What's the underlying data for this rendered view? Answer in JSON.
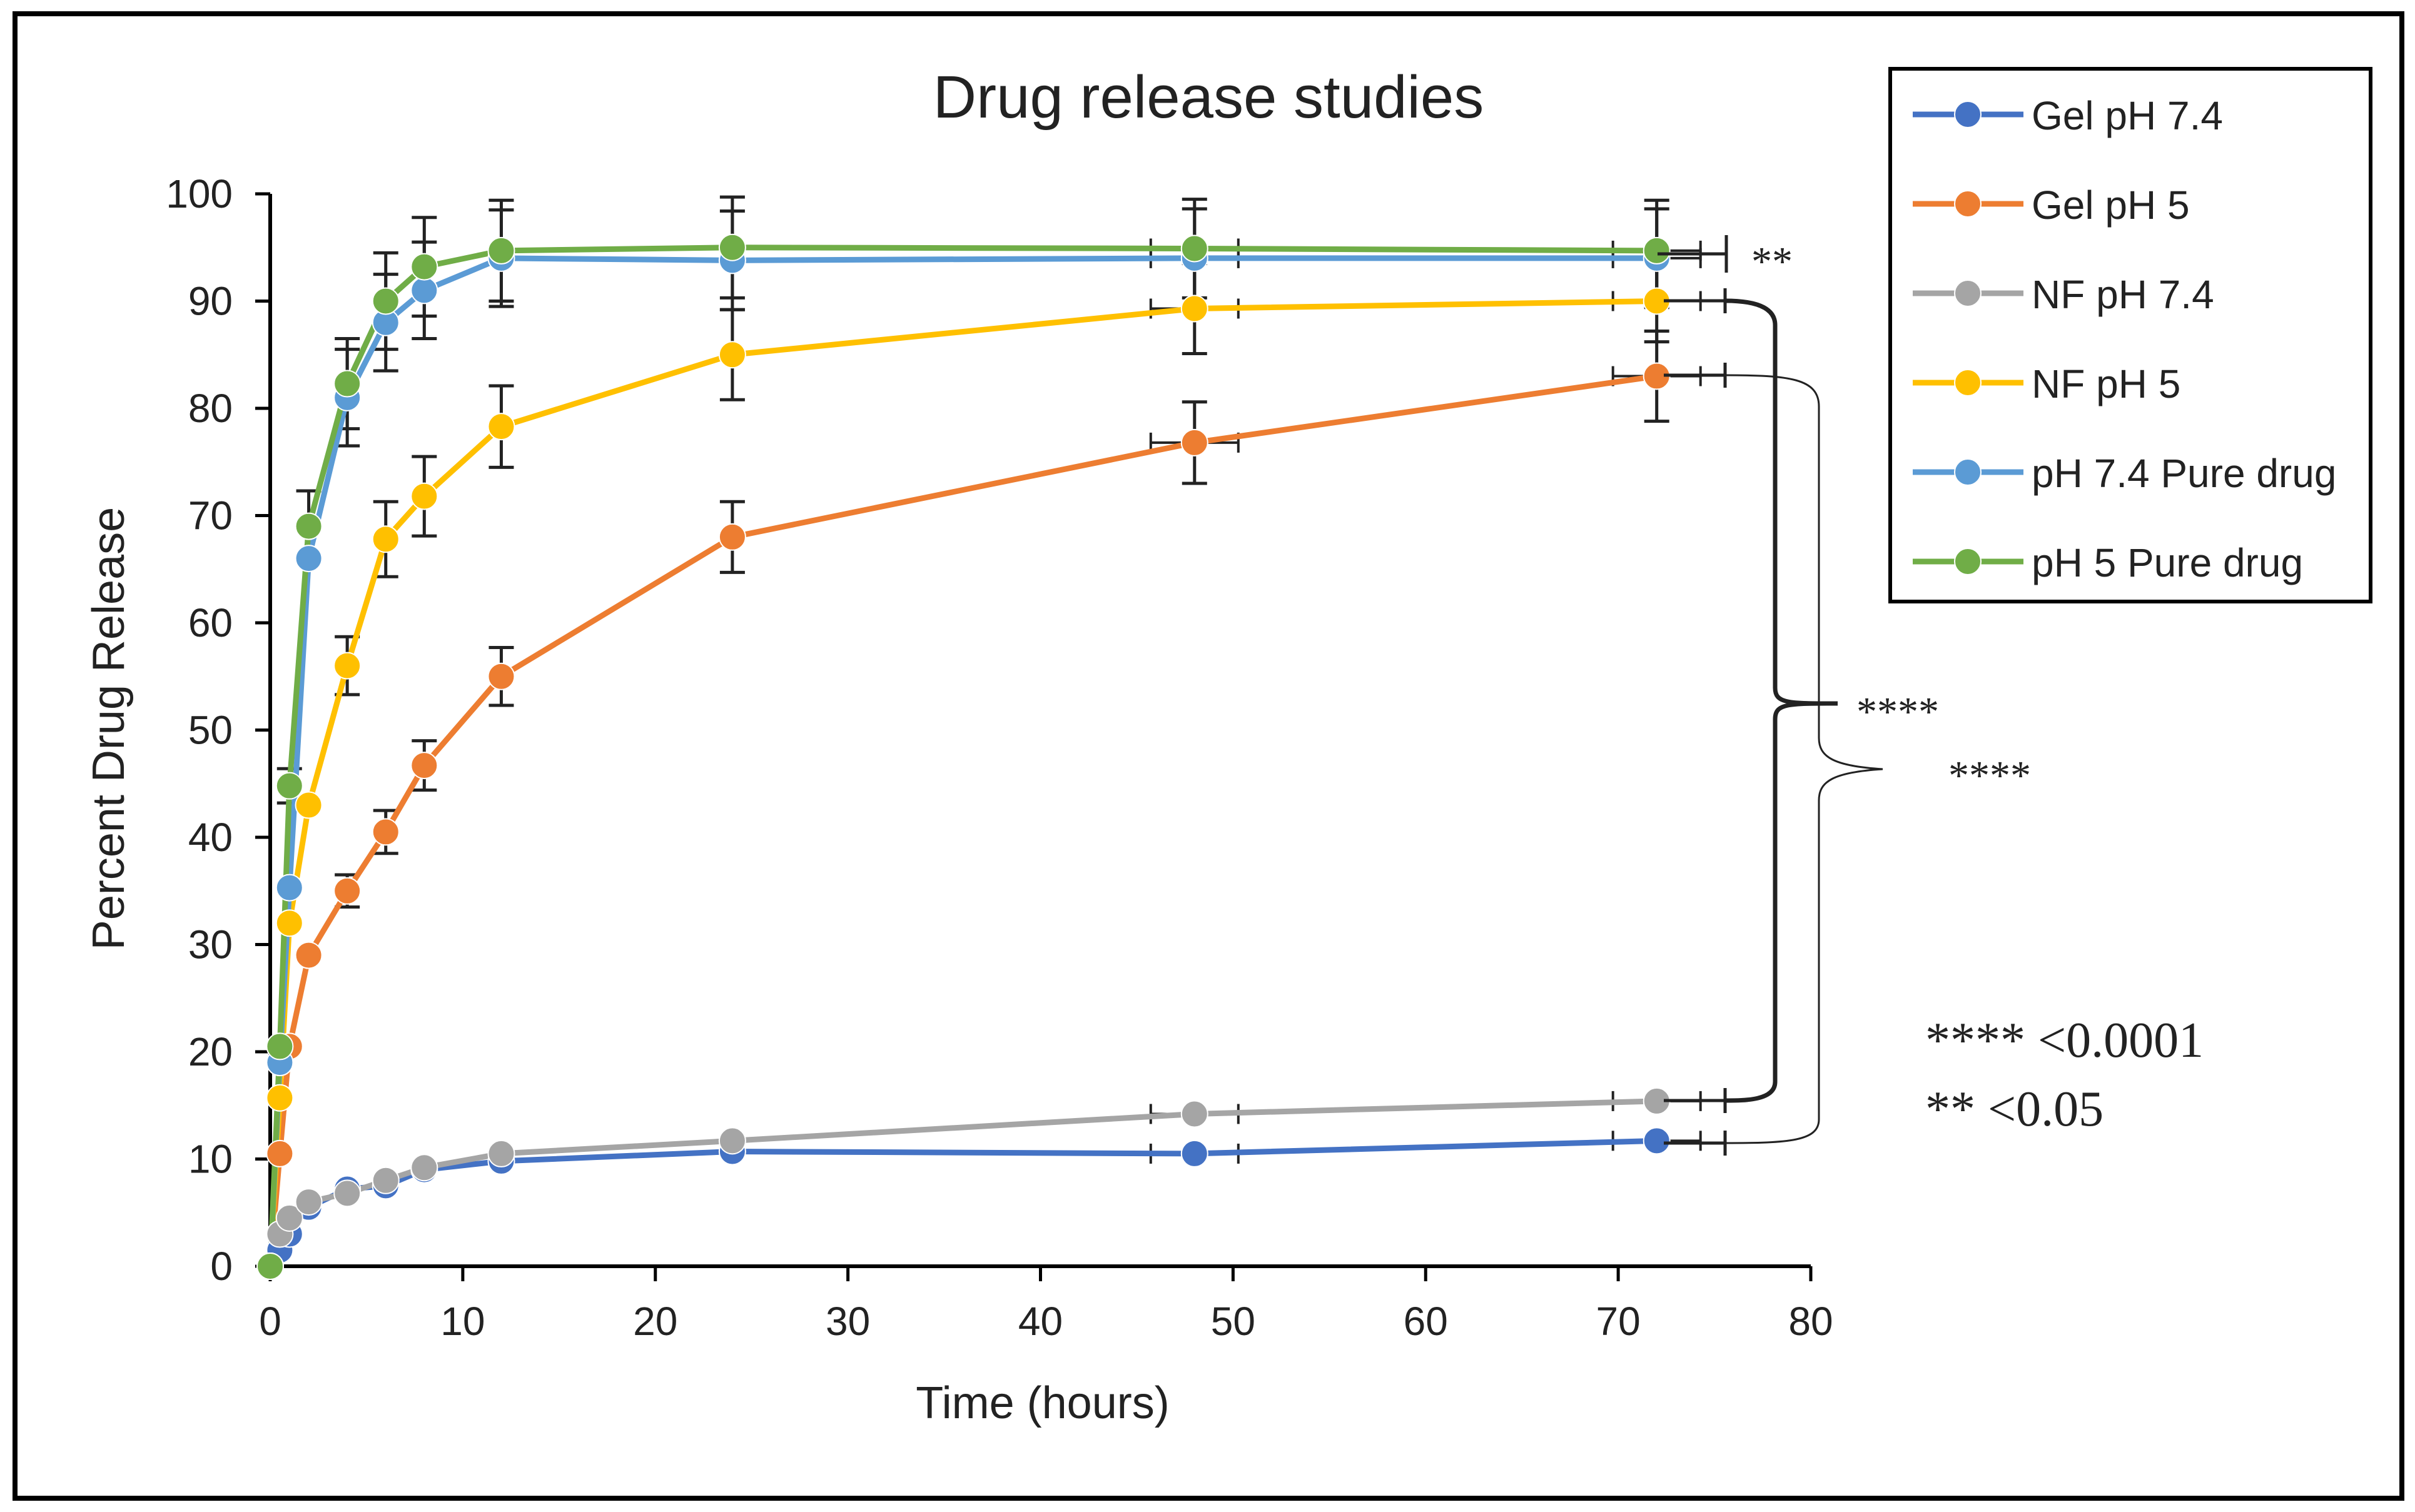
{
  "chart_data": {
    "type": "line",
    "title": "Drug release studies",
    "xlabel": "Time (hours)",
    "ylabel": "Percent Drug Release",
    "xlim": [
      0,
      80
    ],
    "ylim": [
      0,
      100
    ],
    "xticks": [
      "0",
      "10",
      "20",
      "30",
      "40",
      "50",
      "60",
      "70",
      "80"
    ],
    "yticks": [
      "0",
      "10",
      "20",
      "30",
      "40",
      "50",
      "60",
      "70",
      "80",
      "90",
      "100"
    ],
    "grid": false,
    "legend_position": "top-right",
    "series": [
      {
        "name": "Gel pH 7.4",
        "color": "#4472C4",
        "x": [
          0,
          0.5,
          1,
          2,
          4,
          6,
          8,
          12,
          24,
          48,
          72
        ],
        "y": [
          0,
          1.5,
          3,
          5.5,
          7.2,
          7.5,
          9,
          9.8,
          10.7,
          10.5,
          11.7
        ],
        "err": [
          0,
          0,
          0,
          0,
          0,
          0,
          0,
          0,
          0,
          0,
          0
        ]
      },
      {
        "name": "Gel pH 5",
        "color": "#ED7D31",
        "x": [
          0,
          0.5,
          1,
          2,
          4,
          6,
          8,
          12,
          24,
          48,
          72
        ],
        "y": [
          0,
          10.5,
          20.5,
          29,
          35,
          40.5,
          46.7,
          55,
          68,
          76.8,
          83
        ],
        "err": [
          0,
          0,
          0,
          0,
          1.5,
          2,
          2.3,
          2.7,
          3.3,
          3.8,
          4.2
        ]
      },
      {
        "name": "NF pH 7.4",
        "color": "#A5A5A5",
        "x": [
          0,
          0.5,
          1,
          2,
          4,
          6,
          8,
          12,
          24,
          48,
          72
        ],
        "y": [
          0,
          3,
          4.5,
          6,
          6.8,
          8,
          9.2,
          10.5,
          11.7,
          14.2,
          15.4
        ],
        "err": [
          0,
          0,
          0,
          0,
          0,
          0,
          0,
          0,
          0,
          0,
          0
        ]
      },
      {
        "name": "NF pH 5",
        "color": "#FFC000",
        "x": [
          0,
          0.5,
          1,
          2,
          4,
          6,
          8,
          12,
          24,
          48,
          72
        ],
        "y": [
          0,
          15.7,
          32,
          43,
          56,
          67.8,
          71.8,
          78.3,
          85,
          89.3,
          90
        ],
        "err": [
          0,
          0,
          0,
          0,
          2.7,
          3.5,
          3.7,
          3.8,
          4.2,
          4.2,
          3.8
        ]
      },
      {
        "name": "pH 7.4 Pure drug",
        "color": "#5B9BD5",
        "x": [
          0,
          0.5,
          1,
          2,
          4,
          6,
          8,
          12,
          24,
          48,
          72
        ],
        "y": [
          0,
          19,
          35.3,
          66,
          81,
          88,
          91,
          94,
          93.8,
          94,
          94
        ],
        "err": [
          0,
          0,
          0,
          0,
          4.5,
          4.5,
          4.5,
          4.5,
          4.6,
          4.6,
          4.6
        ]
      },
      {
        "name": "pH 5 Pure  drug",
        "color": "#70AD47",
        "x": [
          0,
          0.5,
          1,
          2,
          4,
          6,
          8,
          12,
          24,
          48,
          72
        ],
        "y": [
          0,
          20.5,
          44.8,
          69,
          82.3,
          90,
          93.2,
          94.7,
          95,
          94.9,
          94.7
        ],
        "err": [
          0,
          0,
          1.6,
          3.3,
          4.2,
          4.5,
          4.6,
          4.7,
          4.7,
          4.6,
          4.7
        ]
      }
    ],
    "annotations": {
      "sig_top": "**",
      "sig_mid": "****",
      "sig_low": "****",
      "key_line_1": "**** <0.0001",
      "key_line_2": "** <0.05"
    }
  }
}
